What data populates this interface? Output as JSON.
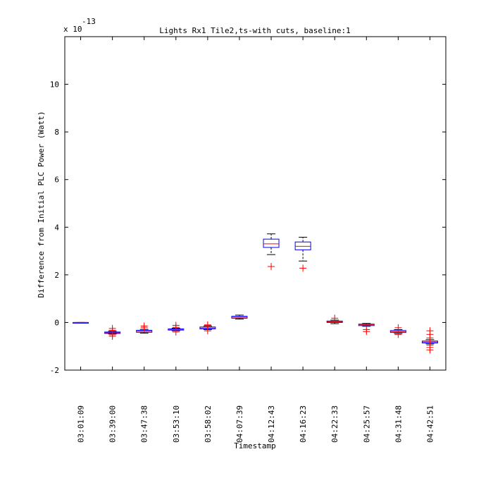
{
  "chart_data": {
    "type": "box",
    "title": "Lights Rx1 Tile2,ts-with cuts, baseline:1",
    "xlabel": "Timestamp",
    "ylabel": "Difference from Initial PLC Power (Watt)",
    "y_exponent_base": "x 10",
    "y_exponent_power": "-13",
    "ylim": [
      -2,
      12
    ],
    "yticks": [
      -2,
      0,
      2,
      4,
      6,
      8,
      10
    ],
    "categories": [
      "03:01:09",
      "03:39:00",
      "03:47:38",
      "03:53:10",
      "03:58:02",
      "04:07:39",
      "04:12:43",
      "04:16:23",
      "04:22:33",
      "04:25:57",
      "04:31:48",
      "04:42:51"
    ],
    "boxes": [
      {
        "min": 0.0,
        "q1": 0.0,
        "median": 0.0,
        "q3": 0.0,
        "max": 0.0,
        "outliers": []
      },
      {
        "min": -0.48,
        "q1": -0.46,
        "median": -0.43,
        "q3": -0.4,
        "max": -0.37,
        "outliers": [
          -0.25,
          -0.33,
          -0.52,
          -0.58
        ]
      },
      {
        "min": -0.45,
        "q1": -0.41,
        "median": -0.37,
        "q3": -0.33,
        "max": -0.29,
        "outliers": [
          -0.15,
          -0.22
        ]
      },
      {
        "min": -0.35,
        "q1": -0.32,
        "median": -0.3,
        "q3": -0.27,
        "max": -0.24,
        "outliers": [
          -0.12,
          -0.2,
          -0.4
        ]
      },
      {
        "min": -0.3,
        "q1": -0.27,
        "median": -0.23,
        "q3": -0.19,
        "max": -0.15,
        "outliers": [
          -0.1,
          -0.13,
          -0.35
        ]
      },
      {
        "min": 0.14,
        "q1": 0.18,
        "median": 0.22,
        "q3": 0.26,
        "max": 0.31,
        "outliers": []
      },
      {
        "min": 2.85,
        "q1": 3.15,
        "median": 3.3,
        "q3": 3.5,
        "max": 3.72,
        "outliers": [
          2.35
        ]
      },
      {
        "min": 2.58,
        "q1": 3.05,
        "median": 3.2,
        "q3": 3.38,
        "max": 3.58,
        "outliers": [
          2.28
        ]
      },
      {
        "min": -0.05,
        "q1": 0.0,
        "median": 0.03,
        "q3": 0.06,
        "max": 0.1,
        "outliers": [
          0.18
        ]
      },
      {
        "min": -0.16,
        "q1": -0.13,
        "median": -0.1,
        "q3": -0.07,
        "max": -0.04,
        "outliers": [
          -0.3,
          -0.38
        ]
      },
      {
        "min": -0.46,
        "q1": -0.42,
        "median": -0.38,
        "q3": -0.34,
        "max": -0.3,
        "outliers": [
          -0.22,
          -0.5
        ]
      },
      {
        "min": -0.9,
        "q1": -0.86,
        "median": -0.82,
        "q3": -0.78,
        "max": -0.72,
        "outliers": [
          -0.35,
          -0.5,
          -0.65,
          -0.95,
          -1.05,
          -1.15
        ]
      }
    ],
    "colors": {
      "box": "#0000ff",
      "median": "#ff0000",
      "whisker": "#000000",
      "outlier": "#ff0000"
    }
  }
}
